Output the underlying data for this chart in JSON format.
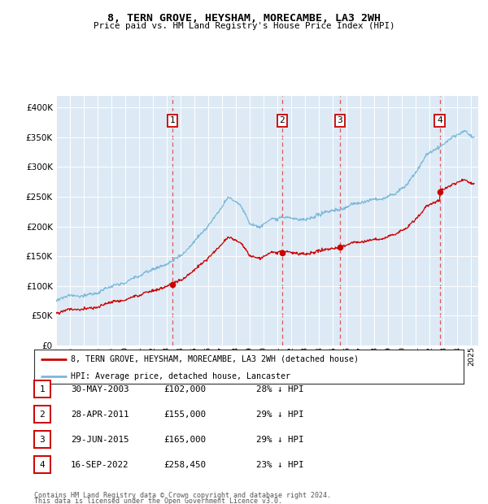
{
  "title": "8, TERN GROVE, HEYSHAM, MORECAMBE, LA3 2WH",
  "subtitle": "Price paid vs. HM Land Registry's House Price Index (HPI)",
  "legend_line1": "8, TERN GROVE, HEYSHAM, MORECAMBE, LA3 2WH (detached house)",
  "legend_line2": "HPI: Average price, detached house, Lancaster",
  "footer1": "Contains HM Land Registry data © Crown copyright and database right 2024.",
  "footer2": "This data is licensed under the Open Government Licence v3.0.",
  "transactions": [
    {
      "num": 1,
      "date": "30-MAY-2003",
      "date_dec": 2003.41,
      "price": 102000,
      "pct": "28% ↓ HPI"
    },
    {
      "num": 2,
      "date": "28-APR-2011",
      "date_dec": 2011.32,
      "price": 155000,
      "pct": "29% ↓ HPI"
    },
    {
      "num": 3,
      "date": "29-JUN-2015",
      "date_dec": 2015.49,
      "price": 165000,
      "pct": "29% ↓ HPI"
    },
    {
      "num": 4,
      "date": "16-SEP-2022",
      "date_dec": 2022.71,
      "price": 258450,
      "pct": "23% ↓ HPI"
    }
  ],
  "hpi_color": "#7ab8d9",
  "price_color": "#cc0000",
  "plot_bg_color": "#ddeaf5",
  "grid_color": "#ffffff",
  "ylim": [
    0,
    420000
  ],
  "xlim_start": 1995.0,
  "xlim_end": 2025.5,
  "yticks": [
    0,
    50000,
    100000,
    150000,
    200000,
    250000,
    300000,
    350000,
    400000
  ]
}
